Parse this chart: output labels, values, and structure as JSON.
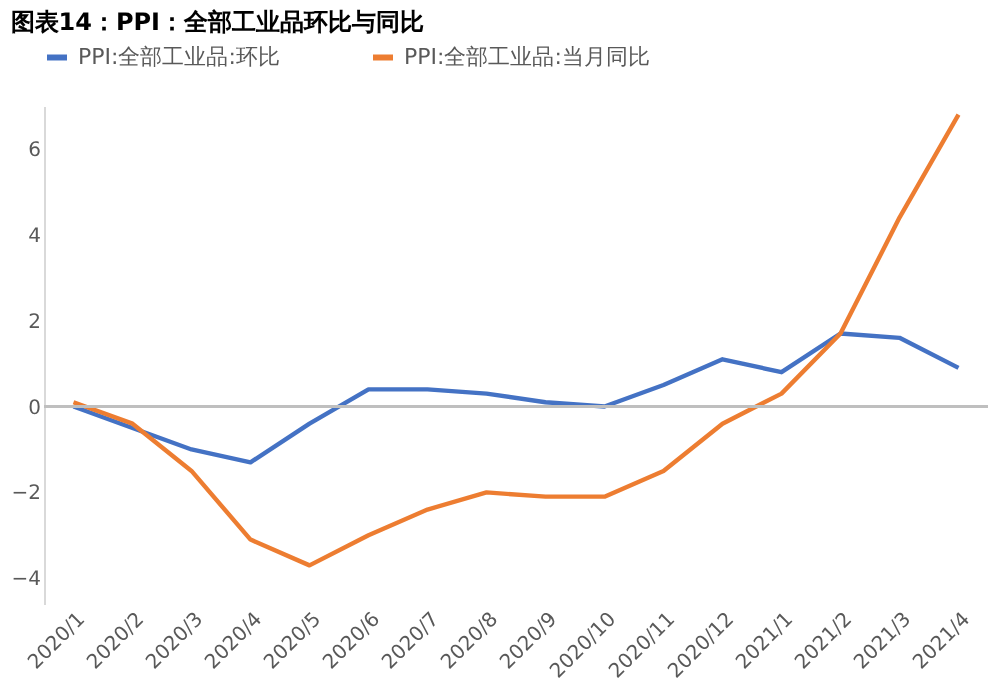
{
  "chart_data": {
    "type": "line",
    "title": "图表14：PPI：全部工业品环比与同比",
    "categories": [
      "2020/1",
      "2020/2",
      "2020/3",
      "2020/4",
      "2020/5",
      "2020/6",
      "2020/7",
      "2020/8",
      "2020/9",
      "2020/10",
      "2020/11",
      "2020/12",
      "2021/1",
      "2021/2",
      "2021/3",
      "2021/4"
    ],
    "series": [
      {
        "name": "PPI:全部工业品:环比",
        "color": "#4472c4",
        "values": [
          0.0,
          -0.5,
          -1.0,
          -1.3,
          -0.4,
          0.4,
          0.4,
          0.3,
          0.1,
          0.0,
          0.5,
          1.1,
          0.8,
          1.7,
          1.6,
          0.9
        ]
      },
      {
        "name": "PPI:全部工业品:当月同比",
        "color": "#ed7d31",
        "values": [
          0.1,
          -0.4,
          -1.5,
          -3.1,
          -3.7,
          -3.0,
          -2.4,
          -2.0,
          -2.1,
          -2.1,
          -1.5,
          -0.4,
          0.3,
          1.7,
          4.4,
          6.8
        ]
      }
    ],
    "ylim": [
      -4.6,
      7
    ],
    "yticks": [
      -4,
      -2,
      0,
      2,
      4,
      6
    ],
    "grid": false,
    "legend": "top",
    "marker": "none",
    "line_style": "solid",
    "ref_lines": [
      {
        "axis": "y",
        "value": 0,
        "color": "#bfbfbf"
      }
    ]
  }
}
